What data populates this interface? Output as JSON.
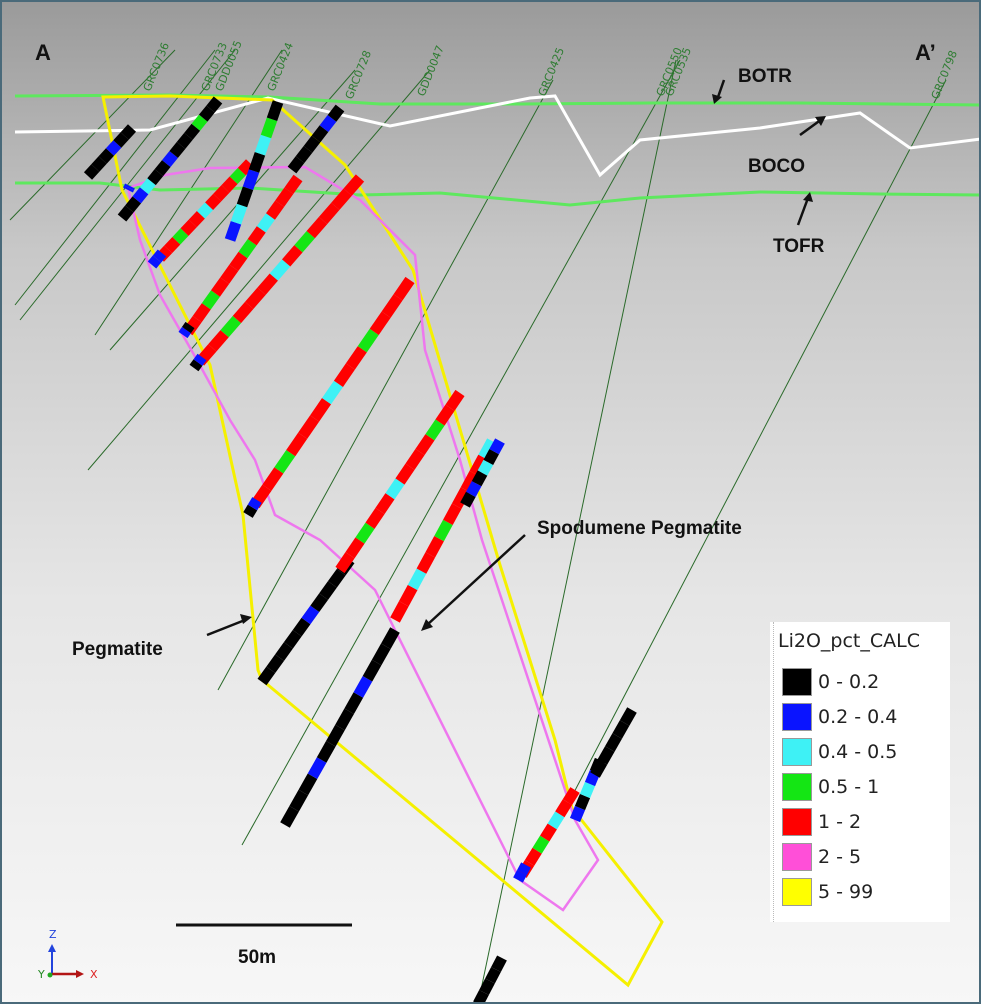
{
  "section": {
    "start_label": "A",
    "end_label": "A’"
  },
  "hole_ids": [
    "GRC0736",
    "GRC0733",
    "GDD0055",
    "GRC0424",
    "GRC0728",
    "GDD0047",
    "GRC0425",
    "GRC0550",
    "GRC0535",
    "GRC0798"
  ],
  "surfaces": [
    {
      "name": "BOTR",
      "color": "#5ee85e"
    },
    {
      "name": "BOCO",
      "color": "#ffffff"
    },
    {
      "name": "TOFR",
      "color": "#5ee85e"
    }
  ],
  "annotations": {
    "spodumene": "Spodumene Pegmatite",
    "pegmatite": "Pegmatite",
    "scale": "50m"
  },
  "legend": {
    "title": "Li2O_pct_CALC",
    "items": [
      {
        "label": "0 - 0.2",
        "color": "#000000"
      },
      {
        "label": "0.2 - 0.4",
        "color": "#0a14ff"
      },
      {
        "label": "0.4 - 0.5",
        "color": "#3ef1f5"
      },
      {
        "label": "0.5 - 1",
        "color": "#14e614"
      },
      {
        "label": "1 - 2",
        "color": "#ff0000"
      },
      {
        "label": "2 - 5",
        "color": "#ff4fd8"
      },
      {
        "label": "5 - 99",
        "color": "#ffff00"
      }
    ]
  },
  "axes": {
    "z": "Z",
    "y": "Y",
    "x": "X"
  },
  "colors": {
    "pegmatite_outline": "#f5f000",
    "spodumene_outline": "#ee77ee",
    "drillhole_trace": "#2a6a2a"
  }
}
